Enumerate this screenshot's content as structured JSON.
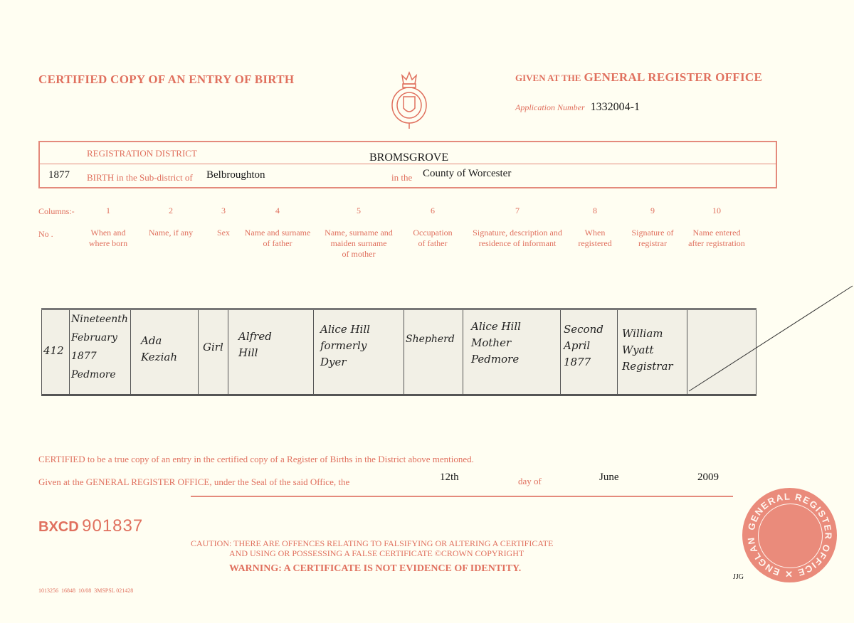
{
  "header": {
    "title": "CERTIFIED COPY OF AN ENTRY OF BIRTH",
    "given_at_prefix": "GIVEN AT THE",
    "office": "GENERAL REGISTER OFFICE",
    "application_label": "Application Number",
    "application_number": "1332004-1"
  },
  "district": {
    "registration_label": "REGISTRATION DISTRICT",
    "registration_value": "BROMSGROVE",
    "year": "1877",
    "subdistrict_label": "BIRTH in the Sub-district of",
    "subdistrict_value": "Belbroughton",
    "in_the_label": "in the",
    "county_value": "County of Worcester"
  },
  "columns": {
    "label": "Columns:-",
    "no_label": "No .",
    "items": [
      {
        "num": "1",
        "title": "When and\nwhere born"
      },
      {
        "num": "2",
        "title": "Name, if any"
      },
      {
        "num": "3",
        "title": "Sex"
      },
      {
        "num": "4",
        "title": "Name and surname\nof father"
      },
      {
        "num": "5",
        "title": "Name, surname and\nmaiden surname\nof mother"
      },
      {
        "num": "6",
        "title": "Occupation\nof father"
      },
      {
        "num": "7",
        "title": "Signature, description and\nresidence of informant"
      },
      {
        "num": "8",
        "title": "When\nregistered"
      },
      {
        "num": "9",
        "title": "Signature of\nregistrar"
      },
      {
        "num": "10",
        "title": "Name entered\nafter registration"
      }
    ]
  },
  "entry": {
    "no": "412",
    "when_where_born": "Nineteenth\nFebruary\n1877\nPedmore",
    "name": "Ada\nKeziah",
    "sex": "Girl",
    "father": "Alfred\nHill",
    "mother": "Alice Hill\nformerly\nDyer",
    "occupation": "Shepherd",
    "informant": "Alice Hill\nMother\nPedmore",
    "when_registered": "Second\nApril\n1877",
    "registrar": "William\nWyatt\nRegistrar",
    "name_after": ""
  },
  "footer": {
    "certified_text": "CERTIFIED to be a true copy of an entry in the certified copy of a Register of Births in the District above mentioned.",
    "given_text": "Given at the GENERAL REGISTER OFFICE, under the Seal of the said Office, the",
    "day": "12th",
    "day_of_label": "day of",
    "month": "June",
    "year": "2009",
    "serial_prefix": "BXCD",
    "serial_number": "901837",
    "caution_line1": "CAUTION: THERE ARE OFFENCES RELATING TO FALSIFYING OR ALTERING A CERTIFICATE",
    "caution_line2": "AND USING OR POSSESSING A FALSE CERTIFICATE ©CROWN COPYRIGHT",
    "warning": "WARNING: A CERTIFICATE IS NOT EVIDENCE OF IDENTITY.",
    "initials": "JJG",
    "print_code": "1013256  16848  10/08  3MSPSL 021428"
  },
  "seal": {
    "text": "GENERAL REGISTER OFFICE ✕ ENGLAND ✕"
  },
  "colors": {
    "accent": "#e0705e",
    "paper": "#fffef2"
  }
}
